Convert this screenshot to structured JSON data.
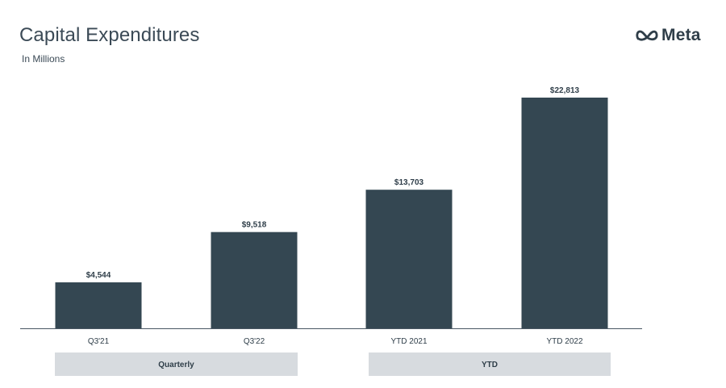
{
  "header": {
    "title": "Capital Expenditures",
    "subtitle": "In Millions",
    "brand": "Meta"
  },
  "colors": {
    "bar": "#344752",
    "group_box": "#d7dbdf",
    "text": "#2f3e49"
  },
  "chart_data": {
    "type": "bar",
    "title": "Capital Expenditures",
    "subtitle": "In Millions",
    "categories": [
      "Q3'21",
      "Q3'22",
      "YTD 2021",
      "YTD 2022"
    ],
    "values": [
      4544,
      9518,
      13703,
      22813
    ],
    "value_labels": [
      "$4,544",
      "$9,518",
      "$13,703",
      "$22,813"
    ],
    "ylim": [
      0,
      22813
    ],
    "xlabel": "",
    "ylabel": "",
    "grid": false,
    "groups": [
      {
        "label": "Quarterly",
        "categories": [
          "Q3'21",
          "Q3'22"
        ]
      },
      {
        "label": "YTD",
        "categories": [
          "YTD 2021",
          "YTD 2022"
        ]
      }
    ]
  }
}
